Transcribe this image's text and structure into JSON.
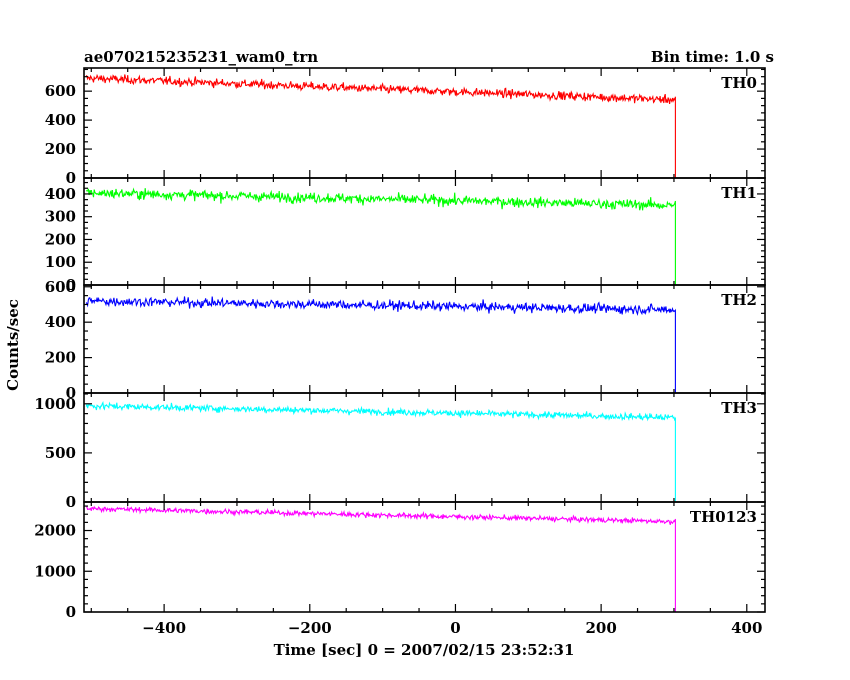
{
  "header": {
    "title": "ae070215235231_wam0_trn",
    "bin_time": "Bin time: 1.0 s"
  },
  "chart_data": {
    "type": "line",
    "title": "ae070215235231_wam0_trn",
    "xlabel": "Time [sec] 0 = 2007/02/15 23:52:31",
    "ylabel": "Counts/sec",
    "xlim": [
      -510,
      425
    ],
    "x_ticks": [
      -400,
      -200,
      0,
      200,
      400
    ],
    "grid": false,
    "bin_time_sec": 1.0,
    "cutoff_time": 302,
    "x_range": [
      -507,
      422
    ],
    "panels": [
      {
        "name": "TH0",
        "color": "#ff0000",
        "ylim": [
          0,
          760
        ],
        "y_ticks": [
          0,
          200,
          400,
          600
        ],
        "start_level": 690,
        "end_level": 540,
        "noise": 26,
        "after_level": 0
      },
      {
        "name": "TH1",
        "color": "#00ff00",
        "ylim": [
          0,
          470
        ],
        "y_ticks": [
          0,
          100,
          200,
          300,
          400
        ],
        "start_level": 405,
        "end_level": 350,
        "noise": 20,
        "after_level": 0
      },
      {
        "name": "TH2",
        "color": "#0000ff",
        "ylim": [
          0,
          610
        ],
        "y_ticks": [
          0,
          200,
          400,
          600
        ],
        "start_level": 520,
        "end_level": 470,
        "noise": 24,
        "after_level": 0
      },
      {
        "name": "TH3",
        "color": "#00ffff",
        "ylim": [
          0,
          1110
        ],
        "y_ticks": [
          0,
          500,
          1000
        ],
        "start_level": 980,
        "end_level": 860,
        "noise": 30,
        "after_level": 0
      },
      {
        "name": "TH0123",
        "color": "#ff00ff",
        "ylim": [
          0,
          2700
        ],
        "y_ticks": [
          0,
          1000,
          2000
        ],
        "start_level": 2540,
        "end_level": 2220,
        "noise": 55,
        "after_level": 0
      }
    ]
  }
}
